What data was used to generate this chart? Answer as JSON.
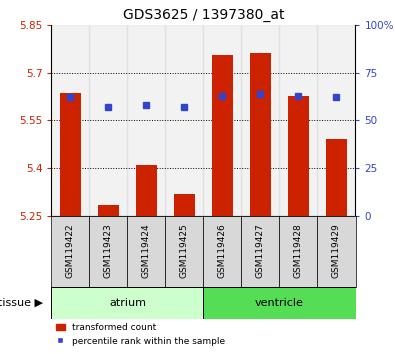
{
  "title": "GDS3625 / 1397380_at",
  "samples": [
    "GSM119422",
    "GSM119423",
    "GSM119424",
    "GSM119425",
    "GSM119426",
    "GSM119427",
    "GSM119428",
    "GSM119429"
  ],
  "red_values": [
    5.635,
    5.285,
    5.41,
    5.32,
    5.755,
    5.76,
    5.625,
    5.49
  ],
  "blue_values": [
    62,
    57,
    58,
    57,
    63,
    64,
    63,
    62
  ],
  "ylim_left": [
    5.25,
    5.85
  ],
  "ylim_right": [
    0,
    100
  ],
  "yticks_left": [
    5.25,
    5.4,
    5.55,
    5.7,
    5.85
  ],
  "yticks_right": [
    0,
    25,
    50,
    75,
    100
  ],
  "ytick_labels_left": [
    "5.25",
    "5.4",
    "5.55",
    "5.7",
    "5.85"
  ],
  "ytick_labels_right": [
    "0",
    "25",
    "50",
    "75",
    "100%"
  ],
  "hlines": [
    5.4,
    5.55,
    5.7
  ],
  "bar_bottom": 5.25,
  "bar_color": "#cc2200",
  "dot_color": "#3344cc",
  "tissue_groups": [
    {
      "label": "atrium",
      "start": 0,
      "end": 3,
      "color": "#ccffcc"
    },
    {
      "label": "ventricle",
      "start": 4,
      "end": 7,
      "color": "#55dd55"
    }
  ],
  "tissue_label": "tissue",
  "legend_entries": [
    {
      "label": "transformed count",
      "color": "#cc2200"
    },
    {
      "label": "percentile rank within the sample",
      "color": "#3344cc"
    }
  ],
  "bar_width": 0.55,
  "title_fontsize": 10,
  "tick_fontsize": 7.5,
  "label_fontsize": 8
}
